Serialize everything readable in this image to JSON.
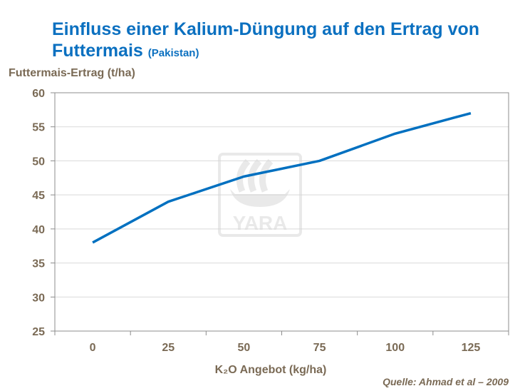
{
  "chart_data": {
    "type": "line",
    "title": "Einfluss einer Kalium-Düngung auf den Ertrag von Futtermais",
    "subtitle": "(Pakistan)",
    "ylabel": "Futtermais-Ertrag (t/ha)",
    "xlabel": "K₂O Angebot (kg/ha)",
    "categories": [
      "0",
      "25",
      "50",
      "75",
      "100",
      "125"
    ],
    "values": [
      38,
      44,
      47.7,
      50,
      54,
      57
    ],
    "ylim": [
      25,
      60
    ],
    "yticks": [
      "25",
      "30",
      "35",
      "40",
      "45",
      "50",
      "55",
      "60"
    ],
    "grid": true,
    "line_color": "#0070c0",
    "watermark": "YARA",
    "source": "Quelle:  Ahmad et al – 2009"
  }
}
